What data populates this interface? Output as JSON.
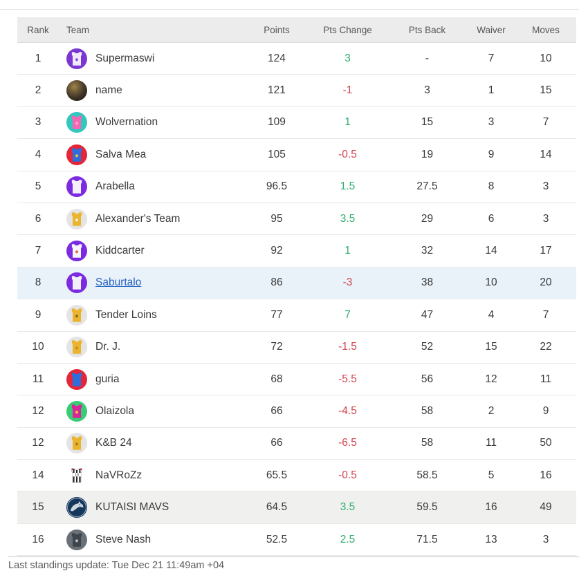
{
  "page": {
    "last_update": "Last standings update: Tue Dec 21 11:49am +04"
  },
  "colors": {
    "positive": "#2fae6d",
    "negative": "#d2454f",
    "link": "#2761c3",
    "highlight_blue": "#e9f2f9",
    "highlight_gray": "#f0f0ef"
  },
  "table": {
    "columns": [
      "Rank",
      "Team",
      "Points",
      "Pts Change",
      "Pts Back",
      "Waiver",
      "Moves"
    ],
    "rows": [
      {
        "rank": "1",
        "team": "Supermaswi",
        "points": "124",
        "pts_change": "3",
        "pts_back": "-",
        "waiver": "7",
        "moves": "10",
        "highlight": "none",
        "link": false,
        "avatar": {
          "type": "jersey",
          "bg": "#7b38d1",
          "jersey": "#f1eafb",
          "accent": "#8d52d8"
        }
      },
      {
        "rank": "2",
        "team": "name",
        "points": "121",
        "pts_change": "-1",
        "pts_back": "3",
        "waiver": "1",
        "moves": "15",
        "highlight": "none",
        "link": false,
        "avatar": {
          "type": "photo"
        }
      },
      {
        "rank": "3",
        "team": "Wolvernation",
        "points": "109",
        "pts_change": "1",
        "pts_back": "15",
        "waiver": "3",
        "moves": "7",
        "highlight": "none",
        "link": false,
        "avatar": {
          "type": "jersey",
          "bg": "#30c8bf",
          "jersey": "#f766b3",
          "accent": "#fcaed6"
        }
      },
      {
        "rank": "4",
        "team": "Salva Mea",
        "points": "105",
        "pts_change": "-0.5",
        "pts_back": "19",
        "waiver": "9",
        "moves": "14",
        "highlight": "none",
        "link": false,
        "avatar": {
          "type": "jersey",
          "bg": "#e32638",
          "jersey": "#2e6ddc",
          "accent": "#f0c232"
        }
      },
      {
        "rank": "5",
        "team": "Arabella",
        "points": "96.5",
        "pts_change": "1.5",
        "pts_back": "27.5",
        "waiver": "8",
        "moves": "3",
        "highlight": "none",
        "link": false,
        "avatar": {
          "type": "jersey",
          "bg": "#7b2ce0",
          "jersey": "#f4f0fc"
        }
      },
      {
        "rank": "6",
        "team": "Alexander's Team",
        "points": "95",
        "pts_change": "3.5",
        "pts_back": "29",
        "waiver": "6",
        "moves": "3",
        "highlight": "none",
        "link": false,
        "avatar": {
          "type": "jersey",
          "bg": "#e4e4e4",
          "jersey": "#eab42e",
          "accent": "#f7f0da"
        }
      },
      {
        "rank": "7",
        "team": "Kiddcarter",
        "points": "92",
        "pts_change": "1",
        "pts_back": "32",
        "waiver": "14",
        "moves": "17",
        "highlight": "none",
        "link": false,
        "avatar": {
          "type": "jersey",
          "bg": "#7b2ce0",
          "jersey": "#f8f6fd",
          "accent": "#d4703a"
        }
      },
      {
        "rank": "8",
        "team": "Saburtalo",
        "points": "86",
        "pts_change": "-3",
        "pts_back": "38",
        "waiver": "10",
        "moves": "20",
        "highlight": "blue",
        "link": true,
        "avatar": {
          "type": "jersey",
          "bg": "#7b2ce0",
          "jersey": "#f2eefb"
        }
      },
      {
        "rank": "9",
        "team": "Tender Loins",
        "points": "77",
        "pts_change": "7",
        "pts_back": "47",
        "waiver": "4",
        "moves": "7",
        "highlight": "none",
        "link": false,
        "avatar": {
          "type": "jersey",
          "bg": "#e4e4e4",
          "jersey": "#eab42e",
          "accent": "#8a6a1d"
        }
      },
      {
        "rank": "10",
        "team": "Dr. J.",
        "points": "72",
        "pts_change": "-1.5",
        "pts_back": "52",
        "waiver": "15",
        "moves": "22",
        "highlight": "none",
        "link": false,
        "avatar": {
          "type": "jersey",
          "bg": "#e4e4e4",
          "jersey": "#eab42e",
          "accent": "#c28c1e"
        }
      },
      {
        "rank": "11",
        "team": "guria",
        "points": "68",
        "pts_change": "-5.5",
        "pts_back": "56",
        "waiver": "12",
        "moves": "11",
        "highlight": "none",
        "link": false,
        "avatar": {
          "type": "jersey",
          "bg": "#e32638",
          "jersey": "#2e6ddc"
        }
      },
      {
        "rank": "12",
        "team": "Olaizola",
        "points": "66",
        "pts_change": "-4.5",
        "pts_back": "58",
        "waiver": "2",
        "moves": "9",
        "highlight": "none",
        "link": false,
        "avatar": {
          "type": "jersey",
          "bg": "#38cd75",
          "jersey": "#d8259c",
          "accent": "#efc53a"
        }
      },
      {
        "rank": "12",
        "team": "K&B 24",
        "points": "66",
        "pts_change": "-6.5",
        "pts_back": "58",
        "waiver": "11",
        "moves": "50",
        "highlight": "none",
        "link": false,
        "avatar": {
          "type": "jersey",
          "bg": "#e4e4e4",
          "jersey": "#eab42e",
          "accent": "#a87f1c"
        }
      },
      {
        "rank": "14",
        "team": "NaVRoZz",
        "points": "65.5",
        "pts_change": "-0.5",
        "pts_back": "58.5",
        "waiver": "5",
        "moves": "16",
        "highlight": "none",
        "link": false,
        "avatar": {
          "type": "stripes"
        }
      },
      {
        "rank": "15",
        "team": "KUTAISI MAVS",
        "points": "64.5",
        "pts_change": "3.5",
        "pts_back": "59.5",
        "waiver": "16",
        "moves": "49",
        "highlight": "gray",
        "link": false,
        "avatar": {
          "type": "mavs",
          "bg": "#16375c"
        }
      },
      {
        "rank": "16",
        "team": "Steve Nash",
        "points": "52.5",
        "pts_change": "2.5",
        "pts_back": "71.5",
        "waiver": "13",
        "moves": "3",
        "highlight": "none",
        "link": false,
        "avatar": {
          "type": "jersey",
          "bg": "#697077",
          "jersey": "#3e444b",
          "accent": "#b7bcc2"
        }
      }
    ]
  }
}
